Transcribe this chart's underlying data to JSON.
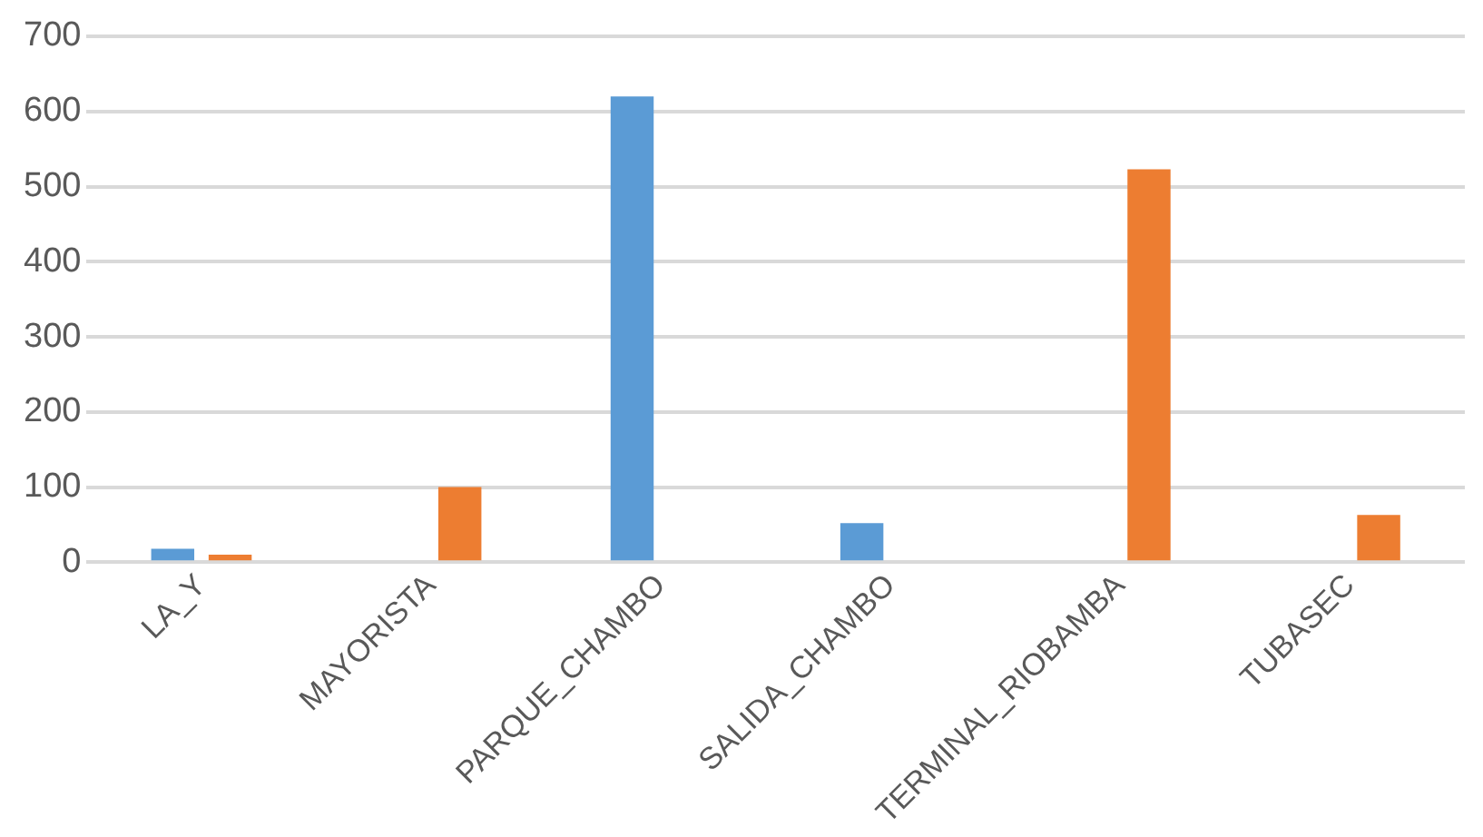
{
  "chart_data": {
    "type": "bar",
    "categories": [
      "LA_Y",
      "MAYORISTA",
      "PARQUE_CHAMBO",
      "SALIDA_CHAMBO",
      "TERMINAL_RIOBAMBA",
      "TUBASEC"
    ],
    "series": [
      {
        "color": "#5b9bd5",
        "values": [
          18,
          null,
          620,
          52,
          null,
          null
        ]
      },
      {
        "color": "#ed7d31",
        "values": [
          10,
          100,
          null,
          null,
          523,
          63
        ]
      }
    ],
    "ylim": [
      0,
      700
    ],
    "yticks": [
      0,
      100,
      200,
      300,
      400,
      500,
      600,
      700
    ],
    "grid": "y",
    "legend": false
  }
}
